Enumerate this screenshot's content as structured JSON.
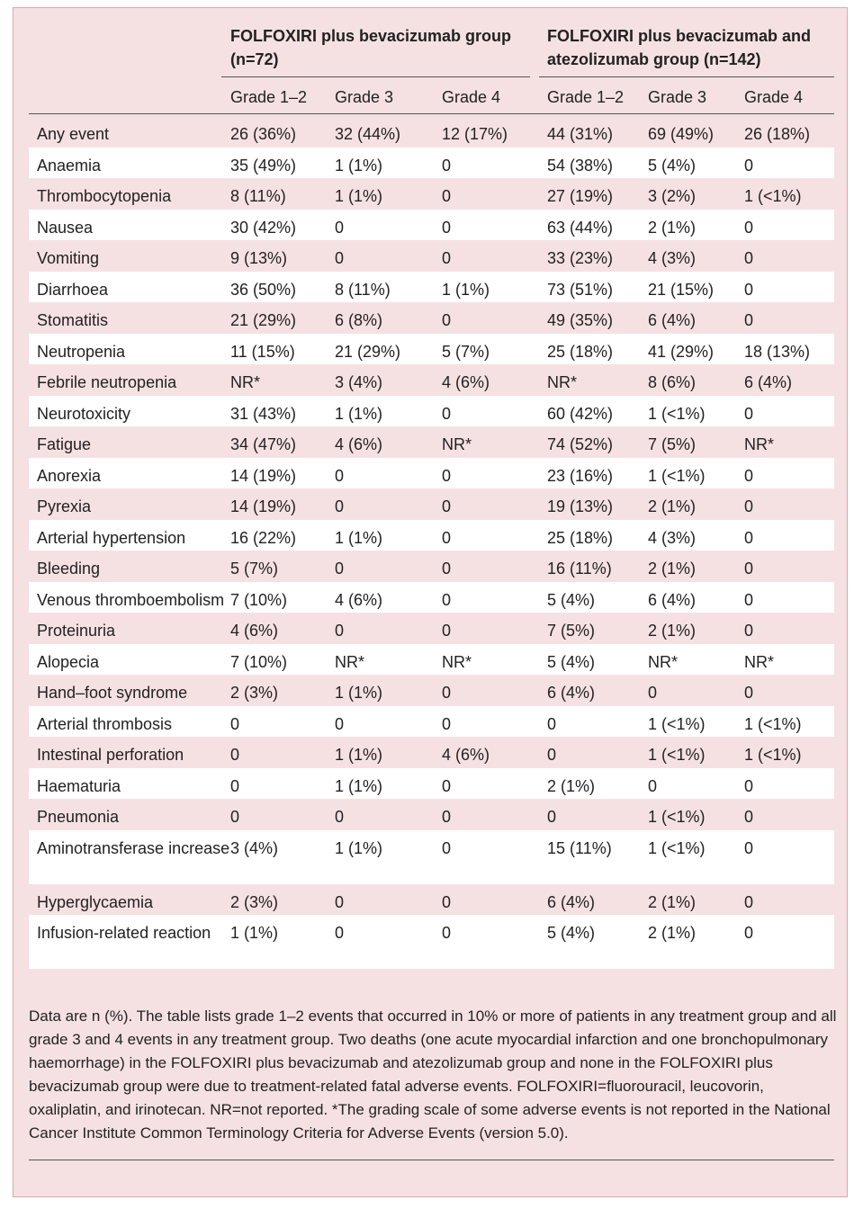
{
  "header": {
    "groups": [
      "FOLFOXIRI plus bevacizumab group (n=72)",
      "FOLFOXIRI plus bevacizumab and atezolizumab group (n=142)"
    ],
    "grades": [
      "Grade 1–2",
      "Grade 3",
      "Grade 4",
      "Grade 1–2",
      "Grade 3",
      "Grade 4"
    ]
  },
  "table": {
    "rows": [
      [
        "Any event",
        "26 (36%)",
        "32 (44%)",
        "12 (17%)",
        "44 (31%)",
        "69 (49%)",
        "26 (18%)"
      ],
      [
        "Anaemia",
        "35 (49%)",
        "1 (1%)",
        "0",
        "54 (38%)",
        "5 (4%)",
        "0"
      ],
      [
        "Thrombocytopenia",
        "8 (11%)",
        "1 (1%)",
        "0",
        "27 (19%)",
        "3 (2%)",
        "1 (<1%)"
      ],
      [
        "Nausea",
        "30 (42%)",
        "0",
        "0",
        "63 (44%)",
        "2 (1%)",
        "0"
      ],
      [
        "Vomiting",
        "9 (13%)",
        "0",
        "0",
        "33 (23%)",
        "4 (3%)",
        "0"
      ],
      [
        "Diarrhoea",
        "36 (50%)",
        "8 (11%)",
        "1 (1%)",
        "73 (51%)",
        "21 (15%)",
        "0"
      ],
      [
        "Stomatitis",
        "21 (29%)",
        "6 (8%)",
        "0",
        "49 (35%)",
        "6 (4%)",
        "0"
      ],
      [
        "Neutropenia",
        "11 (15%)",
        "21 (29%)",
        "5 (7%)",
        "25 (18%)",
        "41 (29%)",
        "18 (13%)"
      ],
      [
        "Febrile neutropenia",
        "NR*",
        "3 (4%)",
        "4 (6%)",
        "NR*",
        "8 (6%)",
        "6 (4%)"
      ],
      [
        "Neurotoxicity",
        "31 (43%)",
        "1 (1%)",
        "0",
        "60 (42%)",
        "1 (<1%)",
        "0"
      ],
      [
        "Fatigue",
        "34 (47%)",
        "4 (6%)",
        "NR*",
        "74 (52%)",
        "7 (5%)",
        "NR*"
      ],
      [
        "Anorexia",
        "14 (19%)",
        "0",
        "0",
        "23 (16%)",
        "1 (<1%)",
        "0"
      ],
      [
        "Pyrexia",
        "14 (19%)",
        "0",
        "0",
        "19 (13%)",
        "2 (1%)",
        "0"
      ],
      [
        "Arterial hypertension",
        "16 (22%)",
        "1 (1%)",
        "0",
        "25 (18%)",
        "4 (3%)",
        "0"
      ],
      [
        "Bleeding",
        "5 (7%)",
        "0",
        "0",
        "16 (11%)",
        "2 (1%)",
        "0"
      ],
      [
        "Venous thromboembolism",
        "7 (10%)",
        "4 (6%)",
        "0",
        "5 (4%)",
        "6 (4%)",
        "0"
      ],
      [
        "Proteinuria",
        "4 (6%)",
        "0",
        "0",
        "7 (5%)",
        "2 (1%)",
        "0"
      ],
      [
        "Alopecia",
        "7 (10%)",
        "NR*",
        "NR*",
        "5 (4%)",
        "NR*",
        "NR*"
      ],
      [
        "Hand–foot syndrome",
        "2 (3%)",
        "1 (1%)",
        "0",
        "6 (4%)",
        "0",
        "0"
      ],
      [
        "Arterial thrombosis",
        "0",
        "0",
        "0",
        "0",
        "1 (<1%)",
        "1 (<1%)"
      ],
      [
        "Intestinal perforation",
        "0",
        "1 (1%)",
        "4 (6%)",
        "0",
        "1 (<1%)",
        "1 (<1%)"
      ],
      [
        "Haematuria",
        "0",
        "1 (1%)",
        "0",
        "2 (1%)",
        "0",
        "0"
      ],
      [
        "Pneumonia",
        "0",
        "0",
        "0",
        "0",
        "1 (<1%)",
        "0"
      ],
      [
        "Aminotransferase increase",
        "3 (4%)",
        "1 (1%)",
        "0",
        "15 (11%)",
        "1 (<1%)",
        "0"
      ],
      [
        "Hyperglycaemia",
        "2 (3%)",
        "0",
        "0",
        "6 (4%)",
        "2 (1%)",
        "0"
      ],
      [
        "Infusion-related reaction",
        "1 (1%)",
        "0",
        "0",
        "5 (4%)",
        "2 (1%)",
        "0"
      ]
    ]
  },
  "footnote": "Data are n (%). The table lists grade 1–2 events that occurred in 10% or more of patients in any treatment group and all grade 3 and 4 events in any treatment group. Two deaths (one acute myocardial infarction and one bronchopulmonary haemorrhage) in the FOLFOXIRI plus bevacizumab and atezolizumab group and none in the FOLFOXIRI plus bevacizumab group were due to treatment-related fatal adverse events. FOLFOXIRI=fluorouracil, leucovorin, oxaliplatin, and irinotecan. NR=not reported. *The grading scale of some adverse events is not reported in the National Cancer Institute Common Terminology Criteria for Adverse Events (version 5.0)."
}
